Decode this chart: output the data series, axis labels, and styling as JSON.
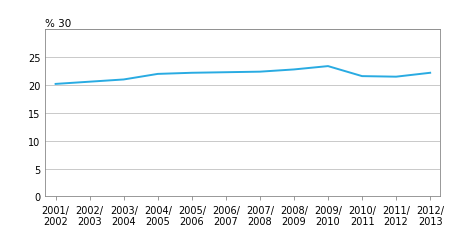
{
  "x_labels": [
    "2001/\n2002",
    "2002/\n2003",
    "2003/\n2004",
    "2004/\n2005",
    "2005/\n2006",
    "2006/\n2007",
    "2007/\n2008",
    "2008/\n2009",
    "2009/\n2010",
    "2010/\n2011",
    "2011/\n2012",
    "2012/\n2013"
  ],
  "y_values": [
    20.2,
    20.6,
    21.0,
    22.0,
    22.2,
    22.3,
    22.4,
    22.8,
    23.4,
    21.6,
    21.5,
    22.2
  ],
  "line_color": "#29ABE2",
  "yticks": [
    0,
    5,
    10,
    15,
    20,
    25,
    30
  ],
  "ylim": [
    0,
    30
  ],
  "background_color": "#ffffff",
  "grid_color": "#c0c0c0",
  "tick_label_fontsize": 7.0,
  "ylabel_label": "% 30",
  "ylabel_fontsize": 7.5,
  "spine_color": "#888888",
  "line_width": 1.4
}
